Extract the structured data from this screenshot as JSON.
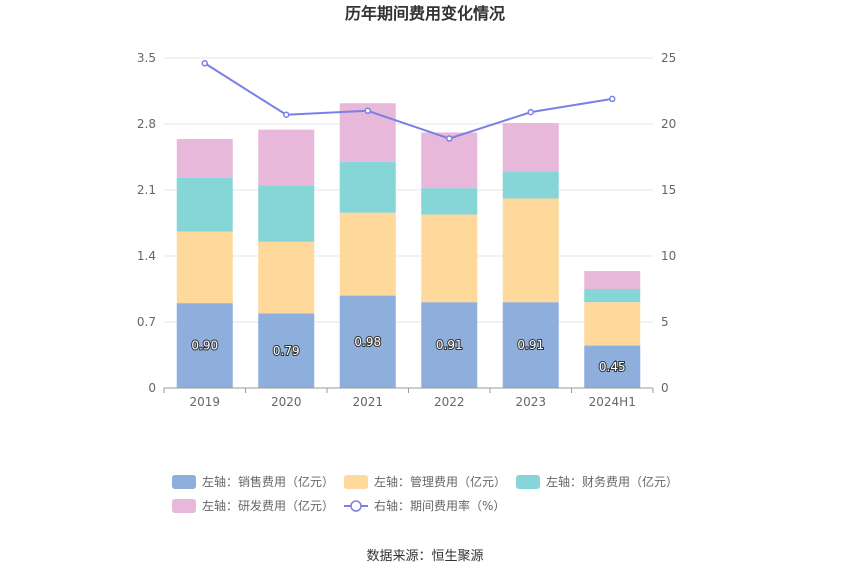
{
  "chart_data": {
    "type": "bar",
    "stacked": true,
    "title": "历年期间费用变化情况",
    "categories": [
      "2019",
      "2020",
      "2021",
      "2022",
      "2023",
      "2024H1"
    ],
    "y_left": {
      "ticks": [
        "0",
        "0.7",
        "1.4",
        "2.1",
        "2.8",
        "3.5"
      ],
      "ylim": [
        0,
        3.5
      ]
    },
    "y_right": {
      "ticks": [
        "0",
        "5",
        "10",
        "15",
        "20",
        "25"
      ],
      "ylim": [
        0,
        25
      ]
    },
    "series": [
      {
        "name": "左轴：销售费用（亿元）",
        "type": "bar",
        "axis": "left",
        "color": "#8eaedb",
        "values": [
          0.9,
          0.79,
          0.98,
          0.91,
          0.91,
          0.45
        ],
        "labels": [
          "0.90",
          "0.79",
          "0.98",
          "0.91",
          "0.91",
          "0.45"
        ]
      },
      {
        "name": "左轴：管理费用（亿元）",
        "type": "bar",
        "axis": "left",
        "color": "#fed99b",
        "values": [
          0.76,
          0.76,
          0.88,
          0.93,
          1.1,
          0.46
        ]
      },
      {
        "name": "左轴：财务费用（亿元）",
        "type": "bar",
        "axis": "left",
        "color": "#86d6d8",
        "values": [
          0.57,
          0.6,
          0.54,
          0.28,
          0.29,
          0.14
        ]
      },
      {
        "name": "左轴：研发费用（亿元）",
        "type": "bar",
        "axis": "left",
        "color": "#e7b8da",
        "values": [
          0.41,
          0.59,
          0.62,
          0.59,
          0.51,
          0.19
        ]
      },
      {
        "name": "右轴：期间费用率（%）",
        "type": "line",
        "axis": "right",
        "color": "#7b7fe6",
        "values": [
          24.6,
          20.7,
          21.0,
          18.9,
          20.9,
          21.9
        ]
      }
    ],
    "grid": true,
    "legend_position": "bottom"
  },
  "source": "数据来源：恒生聚源"
}
